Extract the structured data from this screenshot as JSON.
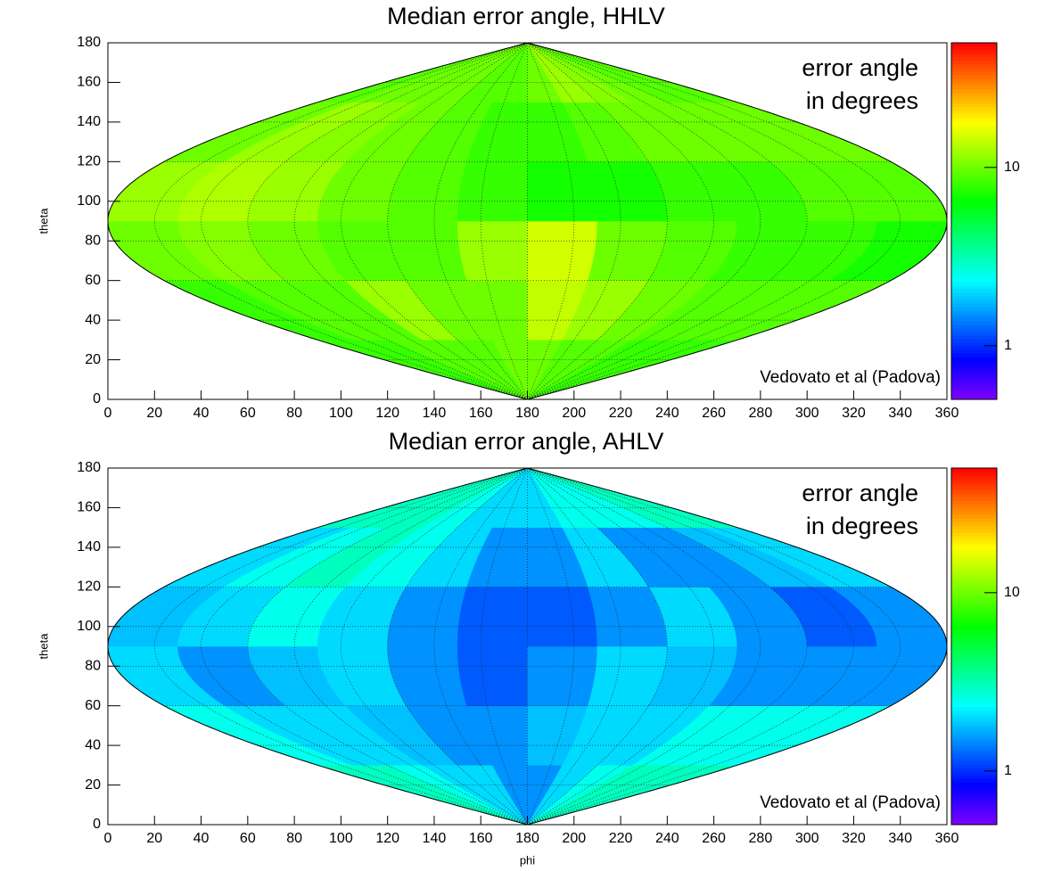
{
  "chart_data": [
    {
      "type": "heatmap",
      "projection": "sinusoidal",
      "title": "Median error angle, HHLV",
      "y_label": "theta",
      "annotation": [
        "error angle",
        "in degrees"
      ],
      "credit": "Vedovato et al (Padova)",
      "xlim": [
        0,
        360
      ],
      "xticks": [
        0,
        20,
        40,
        60,
        80,
        100,
        120,
        140,
        160,
        180,
        200,
        220,
        240,
        260,
        280,
        300,
        320,
        340,
        360
      ],
      "ylim": [
        0,
        180
      ],
      "yticks": [
        0,
        20,
        40,
        60,
        80,
        100,
        120,
        140,
        160,
        180
      ],
      "phi_bins": [
        0,
        30,
        60,
        90,
        120,
        150,
        180,
        210,
        240,
        270,
        300,
        330,
        360
      ],
      "theta_bins": [
        0,
        30,
        60,
        90,
        120,
        150,
        180
      ],
      "values": [
        [
          8,
          8,
          9,
          9,
          9,
          10,
          10,
          9,
          9,
          8,
          8,
          8
        ],
        [
          8,
          9,
          9,
          12,
          10,
          10,
          14,
          12,
          10,
          9,
          9,
          9
        ],
        [
          10,
          11,
          10,
          9,
          9,
          12,
          15,
          10,
          9,
          8,
          8,
          7
        ],
        [
          12,
          13,
          12,
          10,
          9,
          8,
          7,
          7,
          8,
          8,
          9,
          9
        ],
        [
          10,
          12,
          11,
          10,
          9,
          8,
          8,
          9,
          10,
          10,
          10,
          10
        ],
        [
          9,
          10,
          10,
          10,
          9,
          9,
          10,
          12,
          11,
          10,
          9,
          9
        ]
      ],
      "zlim": [
        0.5,
        50
      ],
      "zticks": [
        1,
        10
      ],
      "z_log": true,
      "grid": true
    },
    {
      "type": "heatmap",
      "projection": "sinusoidal",
      "title": "Median error angle, AHLV",
      "x_label": "phi",
      "y_label": "theta",
      "annotation": [
        "error angle",
        "in degrees"
      ],
      "credit": "Vedovato et al (Padova)",
      "xlim": [
        0,
        360
      ],
      "xticks": [
        0,
        20,
        40,
        60,
        80,
        100,
        120,
        140,
        160,
        180,
        200,
        220,
        240,
        260,
        280,
        300,
        320,
        340,
        360
      ],
      "ylim": [
        0,
        180
      ],
      "yticks": [
        0,
        20,
        40,
        60,
        80,
        100,
        120,
        140,
        160,
        180
      ],
      "phi_bins": [
        0,
        30,
        60,
        90,
        120,
        150,
        180,
        210,
        240,
        270,
        300,
        330,
        360
      ],
      "theta_bins": [
        0,
        30,
        60,
        90,
        120,
        150,
        180
      ],
      "values": [
        [
          3,
          3,
          2.5,
          2,
          2,
          1.5,
          1.5,
          2,
          2.5,
          3,
          3,
          3
        ],
        [
          2.5,
          2,
          2,
          1.8,
          1.5,
          1.5,
          1.8,
          2,
          2,
          2.5,
          2.5,
          2.5
        ],
        [
          2,
          1.5,
          1.8,
          2,
          1.5,
          1.2,
          1.5,
          2,
          1.8,
          1.5,
          1.5,
          1.5
        ],
        [
          1.8,
          2,
          2.5,
          2,
          1.5,
          1.2,
          1.2,
          1.5,
          2,
          1.5,
          1.2,
          1.5
        ],
        [
          2,
          2.5,
          3,
          2.5,
          2,
          1.5,
          1.5,
          2,
          1.5,
          1.5,
          1.8,
          2
        ],
        [
          3,
          3,
          3,
          2.5,
          2,
          2,
          2,
          2.5,
          2.5,
          2.5,
          3,
          3
        ]
      ],
      "zlim": [
        0.5,
        50
      ],
      "zticks": [
        1,
        10
      ],
      "z_log": true,
      "grid": true
    }
  ]
}
